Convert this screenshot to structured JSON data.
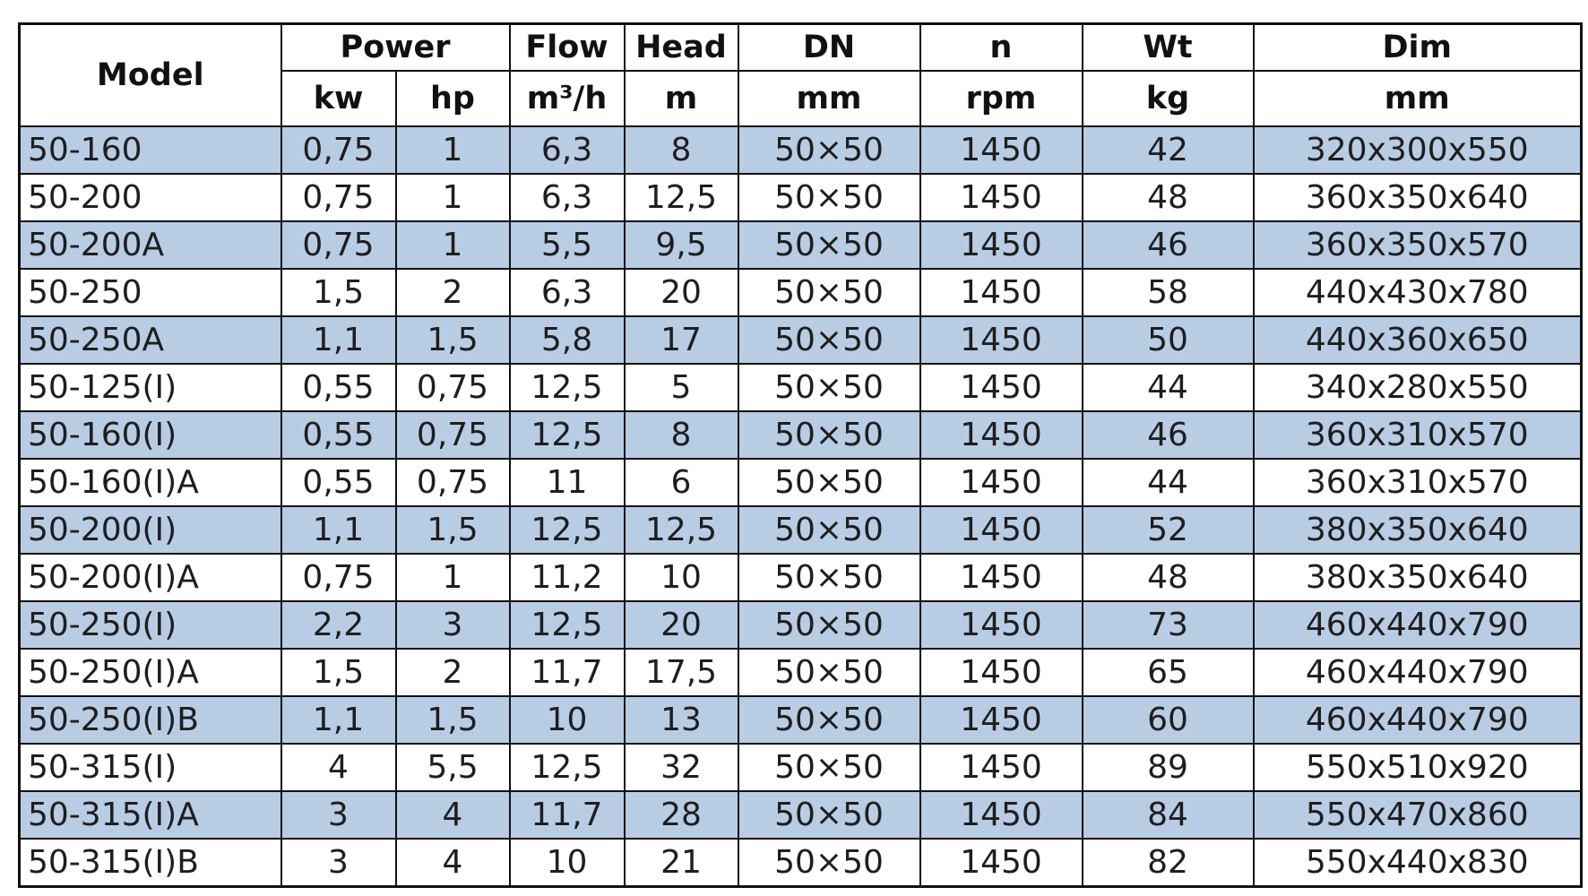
{
  "header": {
    "model": "Model",
    "groups": [
      "Power",
      "Flow",
      "Head",
      "DN",
      "n",
      "Wt",
      "Dim"
    ],
    "units": [
      "kw",
      "hp",
      "m³/h",
      "m",
      "mm",
      "rpm",
      "kg",
      "mm"
    ]
  },
  "colors": {
    "row_alt": "#b8cce4",
    "row": "#ffffff",
    "border": "#111111"
  },
  "rows": [
    [
      "50-160",
      "0,75",
      "1",
      "6,3",
      "8",
      "50×50",
      "1450",
      "42",
      "320x300x550"
    ],
    [
      "50-200",
      "0,75",
      "1",
      "6,3",
      "12,5",
      "50×50",
      "1450",
      "48",
      "360x350x640"
    ],
    [
      "50-200A",
      "0,75",
      "1",
      "5,5",
      "9,5",
      "50×50",
      "1450",
      "46",
      "360x350x570"
    ],
    [
      "50-250",
      "1,5",
      "2",
      "6,3",
      "20",
      "50×50",
      "1450",
      "58",
      "440x430x780"
    ],
    [
      "50-250A",
      "1,1",
      "1,5",
      "5,8",
      "17",
      "50×50",
      "1450",
      "50",
      "440x360x650"
    ],
    [
      "50-125(I)",
      "0,55",
      "0,75",
      "12,5",
      "5",
      "50×50",
      "1450",
      "44",
      "340x280x550"
    ],
    [
      "50-160(I)",
      "0,55",
      "0,75",
      "12,5",
      "8",
      "50×50",
      "1450",
      "46",
      "360x310x570"
    ],
    [
      "50-160(I)A",
      "0,55",
      "0,75",
      "11",
      "6",
      "50×50",
      "1450",
      "44",
      "360x310x570"
    ],
    [
      "50-200(I)",
      "1,1",
      "1,5",
      "12,5",
      "12,5",
      "50×50",
      "1450",
      "52",
      "380x350x640"
    ],
    [
      "50-200(I)A",
      "0,75",
      "1",
      "11,2",
      "10",
      "50×50",
      "1450",
      "48",
      "380x350x640"
    ],
    [
      "50-250(I)",
      "2,2",
      "3",
      "12,5",
      "20",
      "50×50",
      "1450",
      "73",
      "460x440x790"
    ],
    [
      "50-250(I)A",
      "1,5",
      "2",
      "11,7",
      "17,5",
      "50×50",
      "1450",
      "65",
      "460x440x790"
    ],
    [
      "50-250(I)B",
      "1,1",
      "1,5",
      "10",
      "13",
      "50×50",
      "1450",
      "60",
      "460x440x790"
    ],
    [
      "50-315(I)",
      "4",
      "5,5",
      "12,5",
      "32",
      "50×50",
      "1450",
      "89",
      "550x510x920"
    ],
    [
      "50-315(I)A",
      "3",
      "4",
      "11,7",
      "28",
      "50×50",
      "1450",
      "84",
      "550x470x860"
    ],
    [
      "50-315(I)B",
      "3",
      "4",
      "10",
      "21",
      "50×50",
      "1450",
      "82",
      "550x440x830"
    ]
  ]
}
